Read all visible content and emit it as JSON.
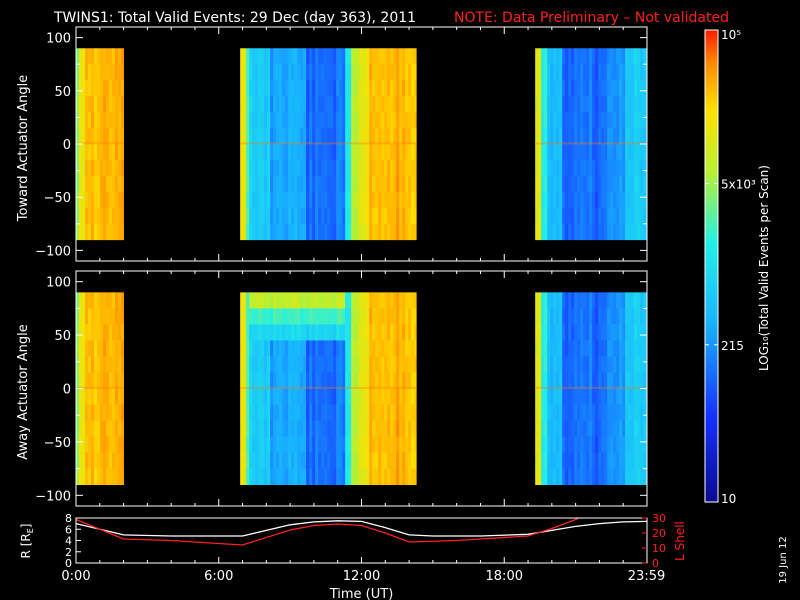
{
  "title": {
    "main": "TWINS1: Total Valid Events: 29 Dec (day 363), 2011",
    "note": "NOTE: Data Preliminary – Not validated",
    "main_color": "#ffffff",
    "note_color": "#ff2020"
  },
  "footer": {
    "date_stamp": "19 Jun 12"
  },
  "chart_data": [
    {
      "type": "heatmap",
      "name": "toward",
      "ylabel": "Toward Actuator Angle",
      "xlim": [
        0,
        24
      ],
      "ylim": [
        -110,
        110
      ],
      "yticks": [
        100,
        50,
        0,
        -50,
        -100
      ],
      "ytick_labels": [
        "100",
        "50",
        "0",
        "−50",
        "−100"
      ],
      "data_range": [
        -90,
        90
      ],
      "segments": [
        {
          "start": 0.0,
          "end": 2.0,
          "profile": "orange_edge"
        },
        {
          "start": 6.9,
          "end": 14.3,
          "profile": "blue_core"
        },
        {
          "start": 19.3,
          "end": 24.0,
          "profile": "blue_gap"
        }
      ]
    },
    {
      "type": "heatmap",
      "name": "away",
      "ylabel": "Away Actuator Angle",
      "xlim": [
        0,
        24
      ],
      "ylim": [
        -110,
        110
      ],
      "yticks": [
        100,
        50,
        0,
        -50,
        -100
      ],
      "ytick_labels": [
        "100",
        "50",
        "0",
        "−50",
        "−100"
      ],
      "data_range": [
        -90,
        90
      ],
      "segments": [
        {
          "start": 0.0,
          "end": 2.0,
          "profile": "orange_edge"
        },
        {
          "start": 6.9,
          "end": 14.3,
          "profile": "blue_core_cap"
        },
        {
          "start": 19.3,
          "end": 24.0,
          "profile": "blue_gap"
        }
      ]
    },
    {
      "type": "line",
      "name": "orbit",
      "ylabel_left": "R [R",
      "ylabel_left_sub": "E",
      "ylabel_left_end": "]",
      "ylabel_right": "L Shell",
      "xlabel": "Time (UT)",
      "xlim": [
        0,
        24
      ],
      "xticks": [
        0,
        6,
        12,
        18,
        23.98
      ],
      "xtick_labels": [
        "0:00",
        "6:00",
        "12:00",
        "18:00",
        "23:59"
      ],
      "ylim_left": [
        0,
        8
      ],
      "yticks_left": [
        "8",
        "6",
        "4",
        "2",
        "0"
      ],
      "ylim_right": [
        0,
        30
      ],
      "yticks_right": [
        "30",
        "20",
        "10",
        "0"
      ],
      "series": [
        {
          "name": "R",
          "color": "#ffffff",
          "x": [
            0,
            2,
            4,
            6,
            7,
            8,
            9,
            10,
            11,
            12,
            13,
            14,
            15,
            17,
            19,
            20,
            21,
            22,
            23,
            24
          ],
          "y": [
            7.0,
            5.0,
            4.8,
            4.8,
            4.8,
            5.8,
            6.8,
            7.3,
            7.5,
            7.4,
            6.3,
            5.0,
            4.8,
            4.8,
            5.1,
            5.8,
            6.5,
            7.0,
            7.3,
            7.4
          ]
        },
        {
          "name": "L Shell",
          "color": "#ff2020",
          "x": [
            0,
            2,
            4,
            7,
            9,
            10,
            11,
            12,
            13,
            14,
            16,
            17,
            19,
            20,
            21,
            21.3
          ],
          "y": [
            29,
            16,
            15,
            12,
            22,
            25,
            26,
            25,
            20,
            14,
            15,
            16,
            18,
            23,
            29,
            31
          ]
        }
      ]
    },
    {
      "type": "colorbar",
      "label": "LOG₁₀(Total Valid Events per Scan)",
      "scale": "log",
      "range": [
        10,
        100000
      ],
      "tick_values": [
        10,
        215,
        5000,
        100000
      ],
      "tick_labels": [
        "10",
        "215",
        "5x10³",
        "10⁵"
      ]
    }
  ]
}
